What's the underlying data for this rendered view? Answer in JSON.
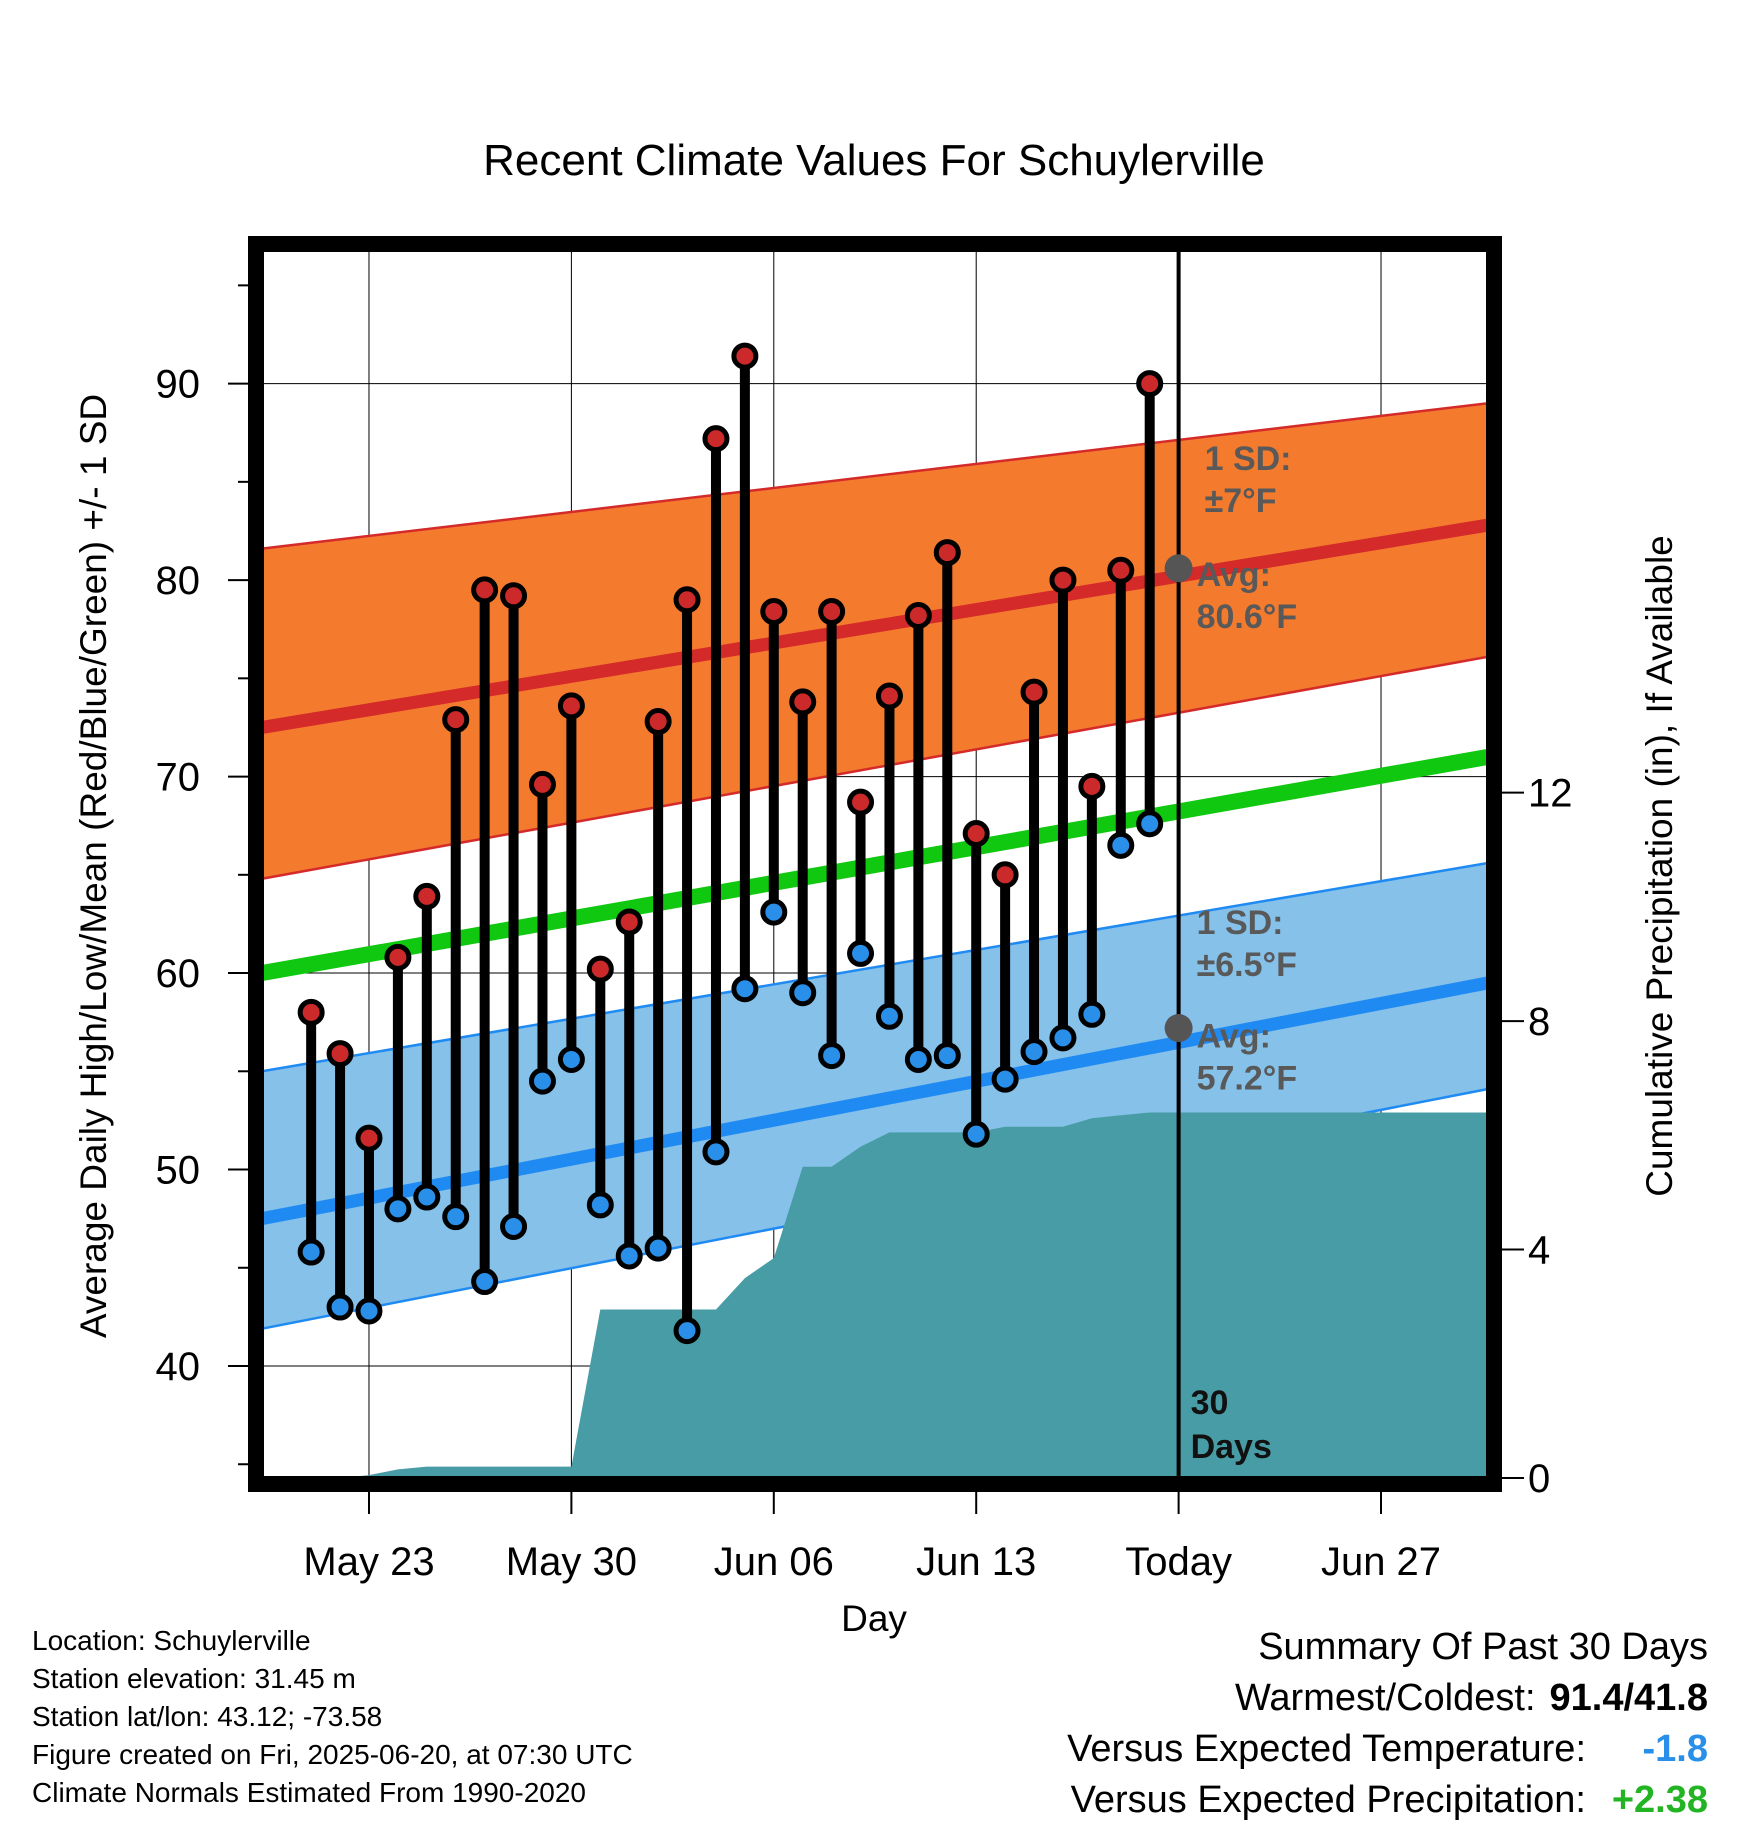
{
  "footer": {
    "location": "Location: Schuylerville",
    "elevation": "Station elevation: 31.45 m",
    "latlon": "Station lat/lon: 43.12; -73.58",
    "created": "Figure created on Fri, 2025-06-20, at 07:30 UTC",
    "normals": "Climate Normals Estimated From 1990-2020"
  },
  "summary": {
    "title": "Summary Of Past 30 Days",
    "warmest_label": "Warmest/Coldest:",
    "warmest_value": "91.4/41.8",
    "temp_label": "Versus Expected Temperature:",
    "temp_value": "-1.8",
    "precip_label": "Versus Expected Precipitation:",
    "precip_value": "+2.38",
    "colors": {
      "temp": "#2a8fe8",
      "precip": "#22b422"
    }
  },
  "chart_data": {
    "type": "line",
    "title": "Recent Climate Values For Schuylerville",
    "xlabel": "Day",
    "ylabel": "Average Daily High/Low/Mean (Red/Blue/Green) +/- 1 SD",
    "y2label": "Cumulative Precipitation (in), If Available",
    "ylim": [
      34.3,
      96.8
    ],
    "y_ticks": [
      40,
      50,
      60,
      70,
      80,
      90
    ],
    "y2lim": [
      0,
      21.5
    ],
    "y2_ticks": [
      0,
      4,
      8,
      12
    ],
    "x_range": [
      "2025-05-19.3",
      "2025-06-30.7"
    ],
    "x_ticks": [
      {
        "date": "2025-05-23",
        "label": "May 23"
      },
      {
        "date": "2025-05-30",
        "label": "May 30"
      },
      {
        "date": "2025-06-06",
        "label": "Jun 06"
      },
      {
        "date": "2025-06-13",
        "label": "Jun 13"
      },
      {
        "date": "2025-06-20",
        "label": "Today"
      },
      {
        "date": "2025-06-27",
        "label": "Jun 27"
      }
    ],
    "grid": true,
    "today": "2025-06-20",
    "window_label": "30\nDays",
    "colors": {
      "high_band": "#f47a2e",
      "high_line": "#d42a2a",
      "low_band": "#85c1e9",
      "low_line": "#1f8bf2",
      "mean_line": "#11c811",
      "precip_fill": "#489ca5",
      "high_marker": "#cc2a2a",
      "low_marker": "#2a8fe8"
    },
    "normal_high": {
      "dates": [
        "2025-05-19.3",
        "2025-06-30.7"
      ],
      "avg": [
        72.5,
        82.8
      ],
      "plus_sd": [
        81.6,
        89.0
      ],
      "minus_sd": [
        64.8,
        76.1
      ],
      "label_sd": "1 SD:\n±7°F",
      "label_avg": "Avg:\n80.6°F",
      "today_avg": 80.6
    },
    "normal_low": {
      "dates": [
        "2025-05-19.3",
        "2025-06-30.7"
      ],
      "avg": [
        47.5,
        59.5
      ],
      "plus_sd": [
        55.0,
        65.6
      ],
      "minus_sd": [
        41.9,
        54.1
      ],
      "label_sd": "1 SD:\n±6.5°F",
      "label_avg": "Avg:\n57.2°F",
      "today_avg": 57.2
    },
    "normal_mean": {
      "dates": [
        "2025-05-19.3",
        "2025-06-30.7"
      ],
      "values": [
        60.0,
        71.0
      ]
    },
    "daily": {
      "dates": [
        "2025-05-21",
        "2025-05-22",
        "2025-05-23",
        "2025-05-24",
        "2025-05-25",
        "2025-05-26",
        "2025-05-27",
        "2025-05-28",
        "2025-05-29",
        "2025-05-30",
        "2025-05-31",
        "2025-06-01",
        "2025-06-02",
        "2025-06-03",
        "2025-06-04",
        "2025-06-05",
        "2025-06-06",
        "2025-06-07",
        "2025-06-08",
        "2025-06-09",
        "2025-06-10",
        "2025-06-11",
        "2025-06-12",
        "2025-06-13",
        "2025-06-14",
        "2025-06-15",
        "2025-06-16",
        "2025-06-17",
        "2025-06-18",
        "2025-06-19"
      ],
      "highs": [
        58.0,
        55.9,
        51.6,
        60.8,
        63.9,
        72.9,
        79.5,
        79.2,
        69.6,
        73.6,
        60.2,
        62.6,
        72.8,
        79.0,
        87.2,
        91.4,
        78.4,
        73.8,
        78.4,
        68.7,
        74.1,
        78.2,
        81.4,
        67.1,
        65.0,
        74.3,
        80.0,
        69.5,
        80.5,
        90.0
      ],
      "lows": [
        45.8,
        43.0,
        42.8,
        48.0,
        48.6,
        47.6,
        44.3,
        47.1,
        54.5,
        55.6,
        48.2,
        45.6,
        46.0,
        41.8,
        50.9,
        59.2,
        63.1,
        59.0,
        55.8,
        61.0,
        57.8,
        55.6,
        55.8,
        51.8,
        54.6,
        56.0,
        56.7,
        57.9,
        66.5,
        67.6
      ]
    },
    "precip": {
      "dates": [
        "2025-05-22",
        "2025-05-23",
        "2025-05-24",
        "2025-05-25",
        "2025-05-26",
        "2025-05-27",
        "2025-05-28",
        "2025-05-29",
        "2025-05-30",
        "2025-05-31",
        "2025-06-01",
        "2025-06-02",
        "2025-06-03",
        "2025-06-04",
        "2025-06-05",
        "2025-06-06",
        "2025-06-07",
        "2025-06-08",
        "2025-06-09",
        "2025-06-10",
        "2025-06-11",
        "2025-06-12",
        "2025-06-13",
        "2025-06-14",
        "2025-06-15",
        "2025-06-16",
        "2025-06-17",
        "2025-06-18",
        "2025-06-19",
        "2025-06-20",
        "2025-06-30.7"
      ],
      "values": [
        0.0,
        0.05,
        0.15,
        0.2,
        0.2,
        0.2,
        0.2,
        0.2,
        0.2,
        2.95,
        2.95,
        2.95,
        2.95,
        2.95,
        3.5,
        3.85,
        5.45,
        5.45,
        5.8,
        6.05,
        6.05,
        6.05,
        6.05,
        6.15,
        6.15,
        6.15,
        6.3,
        6.35,
        6.4,
        6.4,
        6.4
      ]
    }
  }
}
